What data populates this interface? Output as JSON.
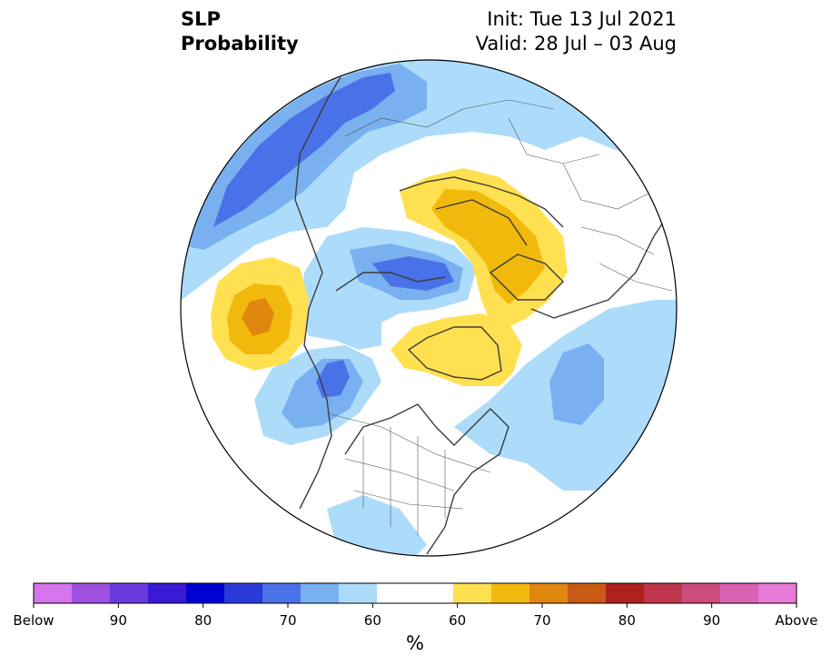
{
  "title": {
    "line1": "SLP",
    "line2": "Probability",
    "init": "Init: Tue 13 Jul 2021",
    "valid": "Valid: 28 Jul – 03 Aug"
  },
  "colorbar": {
    "colors": [
      "#d574ec",
      "#a050e0",
      "#6a3ae0",
      "#3a1ad6",
      "#0000d0",
      "#2a3ad8",
      "#4a72e8",
      "#78b0f0",
      "#acdcfa",
      "#ffffff",
      "#ffffff",
      "#ffe050",
      "#f2b90d",
      "#df870e",
      "#c85a14",
      "#b0211e",
      "#c0364c",
      "#cc4c7c",
      "#da62b2",
      "#e87ad8"
    ],
    "tick_labels": [
      "Below",
      "90",
      "80",
      "70",
      "60",
      "60",
      "70",
      "80",
      "90",
      "Above"
    ],
    "unit": "%"
  },
  "map": {
    "projection": "north polar stereographic",
    "colors": {
      "outline": "#000000",
      "coast": "#3c3c3c",
      "border": "#555555",
      "below_60_65": "#acdcfa",
      "below_65_70": "#78b0f0",
      "below_70_75": "#4a72e8",
      "above_60_65": "#ffe050",
      "above_65_70": "#f2b90d",
      "above_70_75": "#df870e"
    }
  }
}
